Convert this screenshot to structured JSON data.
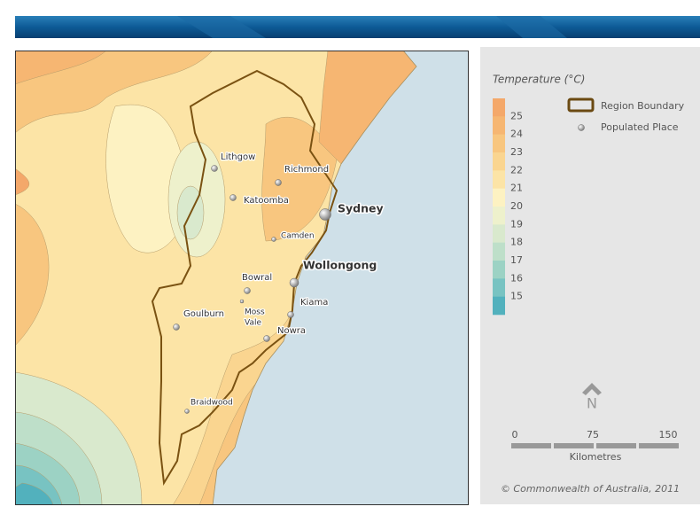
{
  "legend": {
    "title": "Temperature (°C)",
    "scale_labels": [
      25,
      24,
      23,
      22,
      21,
      20,
      19,
      18,
      17,
      16,
      15
    ],
    "colors": [
      "#f4a86a",
      "#f6b672",
      "#f8c67f",
      "#fad590",
      "#fce4a6",
      "#fdf2c2",
      "#eef1cc",
      "#d9e9cd",
      "#bedfc9",
      "#9cd2c4",
      "#78c3c2",
      "#52b1bd"
    ],
    "items": [
      "Region Boundary",
      "Populated Place"
    ]
  },
  "places": [
    {
      "name": "Lithgow"
    },
    {
      "name": "Richmond"
    },
    {
      "name": "Katoomba"
    },
    {
      "name": "Sydney"
    },
    {
      "name": "Camden"
    },
    {
      "name": "Wollongong"
    },
    {
      "name": "Bowral"
    },
    {
      "name_lines": [
        "Moss",
        "Vale"
      ]
    },
    {
      "name": "Kiama"
    },
    {
      "name": "Goulburn"
    },
    {
      "name": "Nowra"
    },
    {
      "name": "Braidwood"
    }
  ],
  "north": "N",
  "scale_bar": {
    "ticks": [
      "0",
      "75",
      "150"
    ],
    "unit": "Kilometres"
  },
  "copyright": "© Commonwealth of Australia, 2011"
}
